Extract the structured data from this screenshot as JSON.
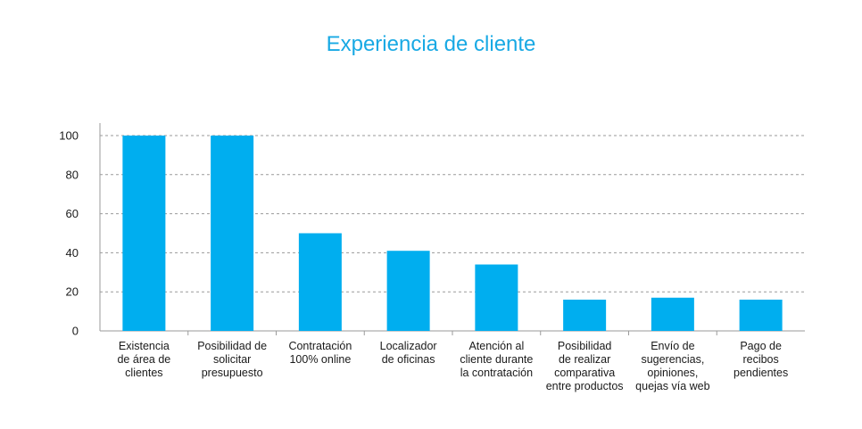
{
  "chart_data": {
    "type": "bar",
    "title": "Experiencia de cliente",
    "categories": [
      "Existencia de área de clientes",
      "Posibilidad de solicitar presupuesto",
      "Contratación 100% online",
      "Localizador de oficinas",
      "Atención al cliente durante la contratación",
      "Posibilidad de realizar comparativa entre productos",
      "Envío de sugerencias, opiniones, quejas vía web",
      "Pago de recibos pendientes"
    ],
    "category_lines": [
      [
        "Existencia",
        "de área de",
        "clientes"
      ],
      [
        "Posibilidad de",
        "solicitar",
        "presupuesto"
      ],
      [
        "Contratación",
        "100% online"
      ],
      [
        "Localizador",
        "de oficinas"
      ],
      [
        "Atención al",
        "cliente durante",
        "la contratación"
      ],
      [
        "Posibilidad",
        "de realizar",
        "comparativa",
        "entre productos"
      ],
      [
        "Envío de",
        "sugerencias,",
        "opiniones,",
        "quejas vía web"
      ],
      [
        "Pago de",
        "recibos",
        "pendientes"
      ]
    ],
    "values": [
      100,
      100,
      50,
      41,
      34,
      16,
      17,
      16
    ],
    "ylim": [
      0,
      100
    ],
    "yticks": [
      "0",
      "20",
      "40",
      "60",
      "80",
      "100"
    ],
    "grid": true,
    "bar_color": "#00aeef",
    "title_color": "#18a9e4"
  }
}
